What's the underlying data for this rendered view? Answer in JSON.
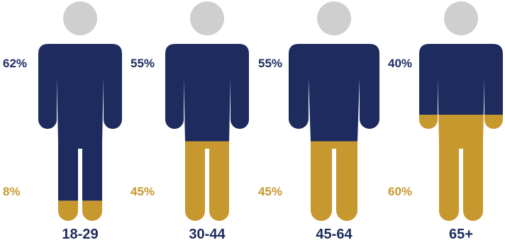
{
  "chart_data": {
    "type": "bar",
    "categories": [
      "18-29",
      "30-44",
      "45-64",
      "65+"
    ],
    "series": [
      {
        "values": [
          62,
          55,
          55,
          40
        ],
        "labels": [
          "62%",
          "55%",
          "55%",
          "40%"
        ]
      },
      {
        "values": [
          8,
          45,
          45,
          60
        ],
        "labels": [
          "8%",
          "45%",
          "45%",
          "60%"
        ]
      }
    ],
    "colors": {
      "top": "#1d2b5e",
      "bottom": "#c7982e",
      "head": "#cfcfcf",
      "category_text": "#1d2b5e"
    },
    "icon": "person-figure-icon"
  }
}
